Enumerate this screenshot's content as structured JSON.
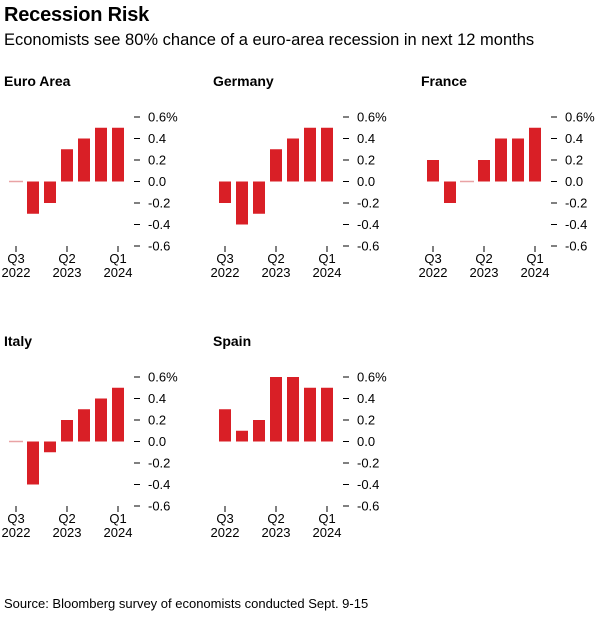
{
  "header": {
    "title": "Recession Risk",
    "subtitle": "Economists see 80% chance of a euro-area recession in next 12 months"
  },
  "footer": {
    "source": "Source: Bloomberg survey of economists conducted Sept. 9-15"
  },
  "colors": {
    "bar": "#d91f26",
    "text": "#000000",
    "baseline": "#e9a3a5"
  },
  "chart_data": [
    {
      "type": "bar",
      "title": "Euro Area",
      "categories": [
        "Q3 2022",
        "Q4 2022",
        "Q1 2023",
        "Q2 2023",
        "Q3 2023",
        "Q4 2023",
        "Q1 2024"
      ],
      "values": [
        0.0,
        -0.3,
        -0.2,
        0.3,
        0.4,
        0.5,
        0.5
      ],
      "ylim": [
        -0.6,
        0.6
      ],
      "yticks": [
        "0.6%",
        "0.4",
        "0.2",
        "0.0",
        "-0.2",
        "-0.4",
        "-0.6"
      ],
      "xticks": [
        {
          "top": "Q3",
          "bottom": "2022"
        },
        {
          "top": "Q2",
          "bottom": "2023"
        },
        {
          "top": "Q1",
          "bottom": "2024"
        }
      ]
    },
    {
      "type": "bar",
      "title": "Germany",
      "categories": [
        "Q3 2022",
        "Q4 2022",
        "Q1 2023",
        "Q2 2023",
        "Q3 2023",
        "Q4 2023",
        "Q1 2024"
      ],
      "values": [
        -0.2,
        -0.4,
        -0.3,
        0.3,
        0.4,
        0.5,
        0.5
      ],
      "ylim": [
        -0.6,
        0.6
      ],
      "yticks": [
        "0.6%",
        "0.4",
        "0.2",
        "0.0",
        "-0.2",
        "-0.4",
        "-0.6"
      ],
      "xticks": [
        {
          "top": "Q3",
          "bottom": "2022"
        },
        {
          "top": "Q2",
          "bottom": "2023"
        },
        {
          "top": "Q1",
          "bottom": "2024"
        }
      ]
    },
    {
      "type": "bar",
      "title": "France",
      "categories": [
        "Q3 2022",
        "Q4 2022",
        "Q1 2023",
        "Q2 2023",
        "Q3 2023",
        "Q4 2023",
        "Q1 2024"
      ],
      "values": [
        0.2,
        -0.2,
        0.0,
        0.2,
        0.4,
        0.4,
        0.5
      ],
      "ylim": [
        -0.6,
        0.6
      ],
      "yticks": [
        "0.6%",
        "0.4",
        "0.2",
        "0.0",
        "-0.2",
        "-0.4",
        "-0.6"
      ],
      "xticks": [
        {
          "top": "Q3",
          "bottom": "2022"
        },
        {
          "top": "Q2",
          "bottom": "2023"
        },
        {
          "top": "Q1",
          "bottom": "2024"
        }
      ]
    },
    {
      "type": "bar",
      "title": "Italy",
      "categories": [
        "Q3 2022",
        "Q4 2022",
        "Q1 2023",
        "Q2 2023",
        "Q3 2023",
        "Q4 2023",
        "Q1 2024"
      ],
      "values": [
        0.0,
        -0.4,
        -0.1,
        0.2,
        0.3,
        0.4,
        0.5
      ],
      "ylim": [
        -0.6,
        0.6
      ],
      "yticks": [
        "0.6%",
        "0.4",
        "0.2",
        "0.0",
        "-0.2",
        "-0.4",
        "-0.6"
      ],
      "xticks": [
        {
          "top": "Q3",
          "bottom": "2022"
        },
        {
          "top": "Q2",
          "bottom": "2023"
        },
        {
          "top": "Q1",
          "bottom": "2024"
        }
      ]
    },
    {
      "type": "bar",
      "title": "Spain",
      "categories": [
        "Q3 2022",
        "Q4 2022",
        "Q1 2023",
        "Q2 2023",
        "Q3 2023",
        "Q4 2023",
        "Q1 2024"
      ],
      "values": [
        0.3,
        0.1,
        0.2,
        0.6,
        0.6,
        0.5,
        0.5
      ],
      "ylim": [
        -0.6,
        0.6
      ],
      "yticks": [
        "0.6%",
        "0.4",
        "0.2",
        "0.0",
        "-0.2",
        "-0.4",
        "-0.6"
      ],
      "xticks": [
        {
          "top": "Q3",
          "bottom": "2022"
        },
        {
          "top": "Q2",
          "bottom": "2023"
        },
        {
          "top": "Q1",
          "bottom": "2024"
        }
      ]
    }
  ]
}
